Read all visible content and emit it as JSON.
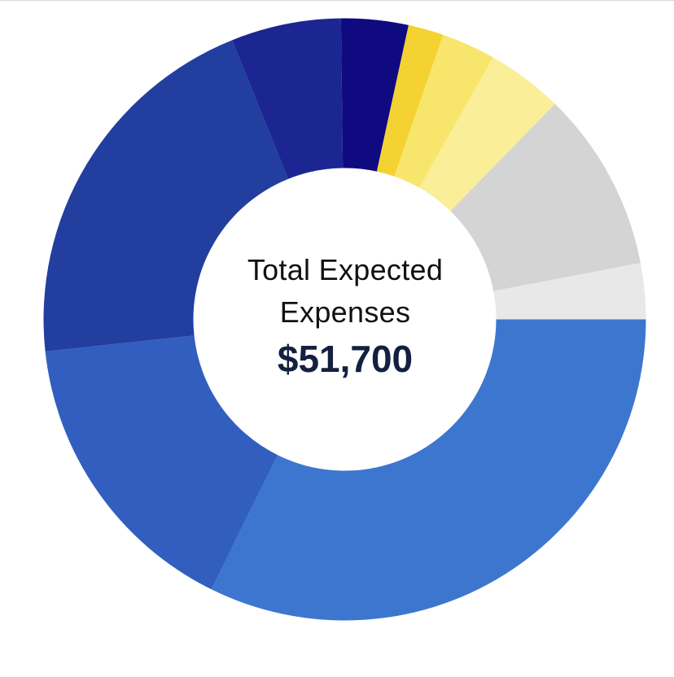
{
  "chart_data": {
    "type": "pie",
    "variant": "donut",
    "center_title": "Total Expected Expenses",
    "center_value": "$51,700",
    "slices": [
      {
        "value": 32.3,
        "color": "#3d76cf"
      },
      {
        "value": 16.0,
        "color": "#325ebf"
      },
      {
        "value": 20.6,
        "color": "#223e9f"
      },
      {
        "value": 5.9,
        "color": "#1c2692"
      },
      {
        "value": 3.6,
        "color": "#100a80"
      },
      {
        "value": 1.9,
        "color": "#f4d232"
      },
      {
        "value": 2.9,
        "color": "#f8e56b"
      },
      {
        "value": 4.1,
        "color": "#fbee98"
      },
      {
        "value": 9.7,
        "color": "#d4d4d4"
      },
      {
        "value": 3.0,
        "color": "#e8e8e8"
      }
    ]
  }
}
